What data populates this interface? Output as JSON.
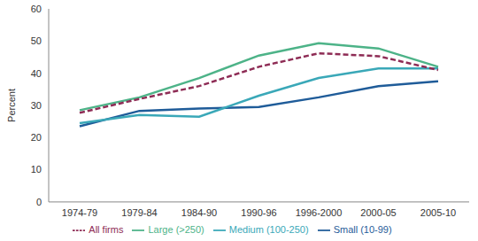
{
  "chart_data": {
    "type": "line",
    "y_label": "Percent",
    "categories": [
      "1974-79",
      "1979-84",
      "1984-90",
      "1990-96",
      "1996-2000",
      "2000-05",
      "2005-10"
    ],
    "series": [
      {
        "name": "Small (10-99)",
        "color": "#1f5c99",
        "line_style": "solid",
        "values": [
          23.5,
          28.3,
          29,
          29.5,
          32.5,
          36,
          37.5
        ]
      },
      {
        "name": "Medium (100-250)",
        "color": "#3aa8b8",
        "line_style": "solid",
        "values": [
          24.5,
          27,
          26.5,
          33,
          38.5,
          41.5,
          41.5
        ]
      },
      {
        "name": "Large (>250)",
        "color": "#4db388",
        "line_style": "solid",
        "values": [
          28.5,
          32.5,
          38.5,
          45.5,
          49.3,
          47.7,
          42
        ]
      },
      {
        "name": "All firms",
        "color": "#8e2c55",
        "line_style": "dashed",
        "values": [
          27.7,
          32,
          36,
          42,
          46.2,
          45.3,
          41
        ]
      }
    ],
    "ylim": [
      0,
      60
    ],
    "yticks": [
      0,
      10,
      20,
      30,
      40,
      50,
      60
    ],
    "grid": false,
    "legend": "bottom"
  }
}
